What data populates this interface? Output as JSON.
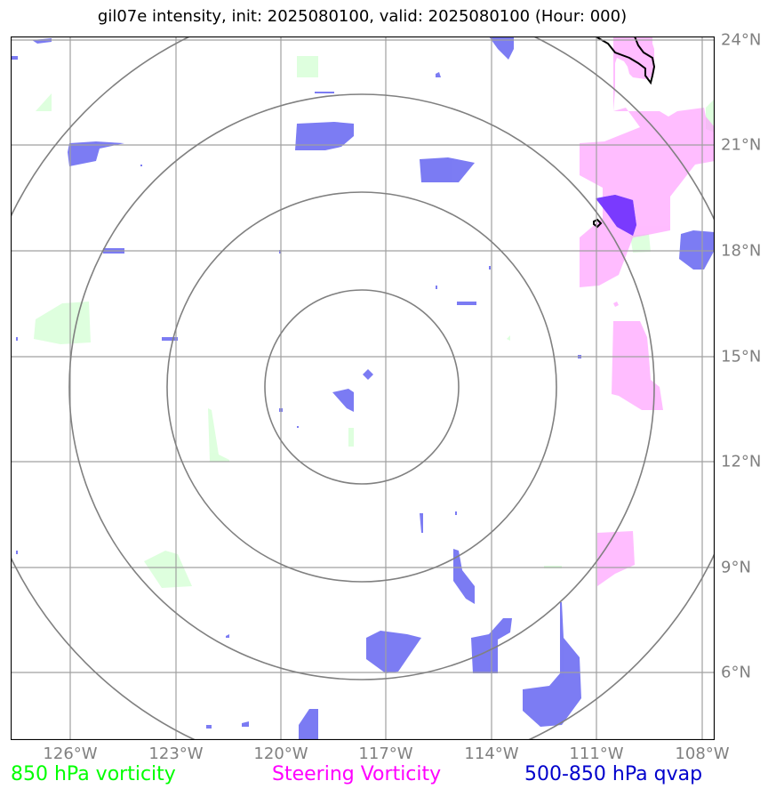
{
  "title": "gil07e intensity, init: 2025080100, valid: 2025080100 (Hour: 000)",
  "lon_labels": [
    "126°W",
    "123°W",
    "120°W",
    "117°W",
    "114°W",
    "111°W",
    "108°W"
  ],
  "lat_labels": [
    "24°N",
    "21°N",
    "18°N",
    "15°N",
    "12°N",
    "9°N",
    "6°N"
  ],
  "legend": {
    "vorticity_850": "850 hPa vorticity",
    "steering": "Steering Vorticity",
    "qvap": "500-850 hPa qvap"
  },
  "colors": {
    "vorticity_850": "#00ff00",
    "steering": "#ff00ff",
    "qvap": "#0000cc",
    "grid": "#a0a0a0",
    "rings": "#808080"
  },
  "center": {
    "lon": -117.7,
    "lat": 14.2
  },
  "rings_deg": [
    2.7,
    5.4,
    8.1,
    10.8
  ]
}
